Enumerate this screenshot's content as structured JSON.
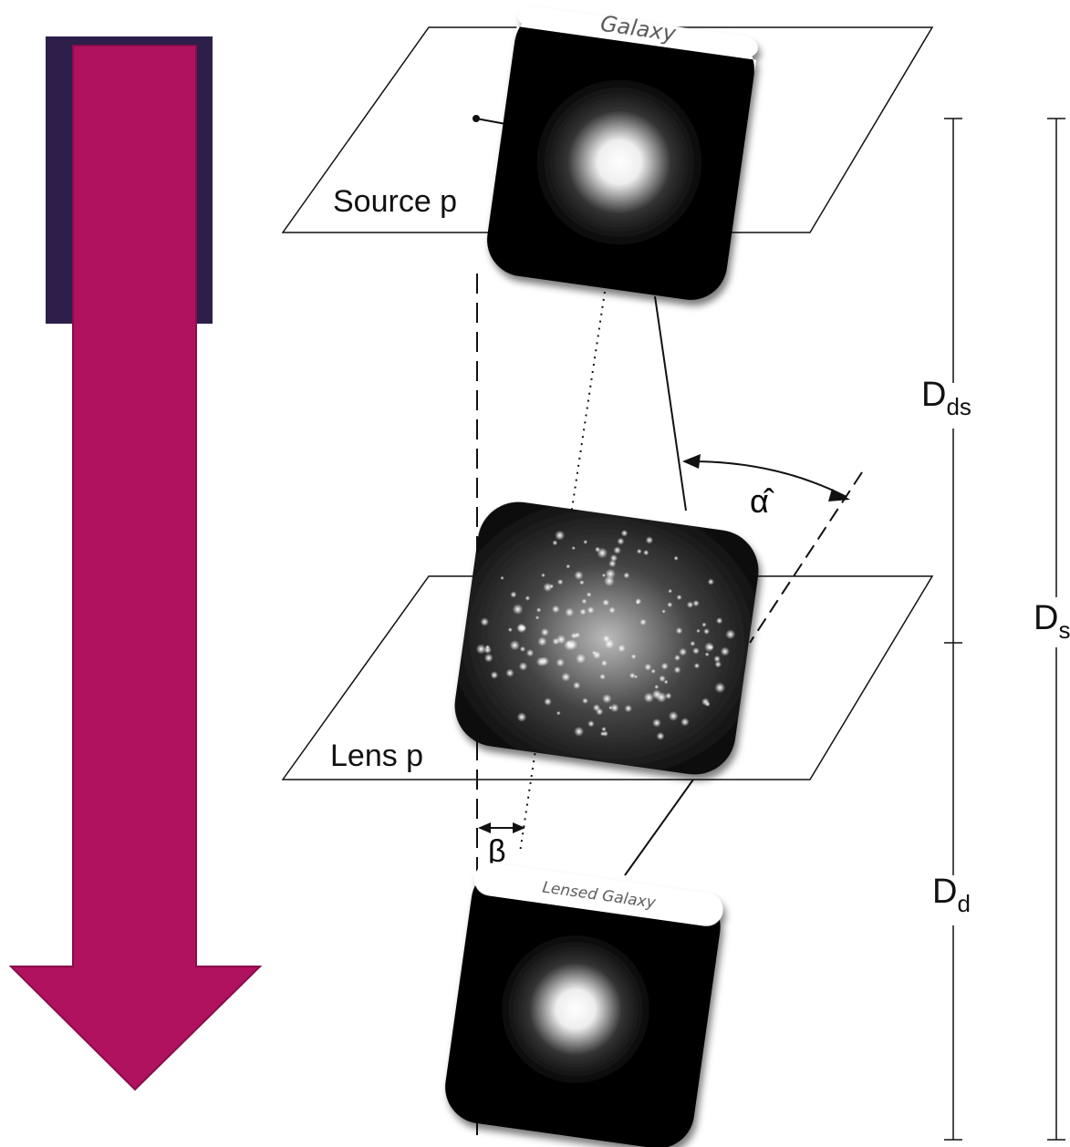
{
  "cards": {
    "source": {
      "title": "Galaxy"
    },
    "lensed": {
      "title": "Lensed Galaxy"
    }
  },
  "planes": {
    "source": "Source p",
    "lens": "Lens p"
  },
  "angles": {
    "alpha": "α̂",
    "beta": "β"
  },
  "distances": {
    "dds": {
      "main": "D",
      "sub": "ds"
    },
    "ds": {
      "main": "D",
      "sub": "s"
    },
    "dd": {
      "main": "D",
      "sub": "d"
    }
  }
}
